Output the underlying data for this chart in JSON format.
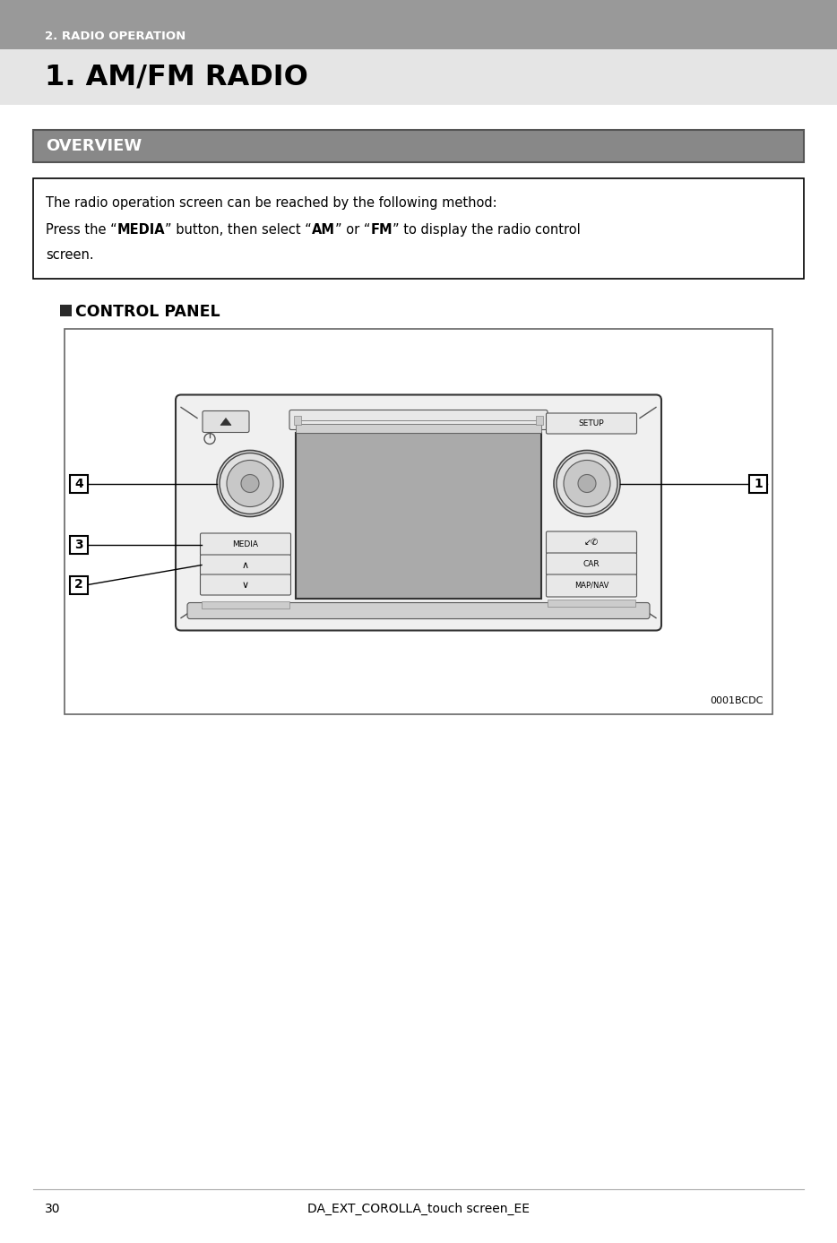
{
  "page_bg": "#efefef",
  "header_bg": "#999999",
  "header_text": "2. RADIO OPERATION",
  "header_text_color": "#ffffff",
  "title_bg": "#e5e5e5",
  "title_text": "1. AM/FM RADIO",
  "title_text_color": "#000000",
  "overview_bg": "#888888",
  "overview_text": "OVERVIEW",
  "overview_text_color": "#ffffff",
  "info_line1": "The radio operation screen can be reached by the following method:",
  "info_line2_plain1": "Press the “",
  "info_line2_bold1": "MEDIA",
  "info_line2_plain2": "” button, then select “",
  "info_line2_bold2": "AM",
  "info_line2_plain3": "” or “",
  "info_line2_bold3": "FM",
  "info_line2_plain4": "” to display the radio control",
  "info_line3": "screen.",
  "control_panel_label": "CONTROL PANEL",
  "image_code": "0001BCDC",
  "footer_text": "DA_EXT_COROLLA_touch screen_EE",
  "page_number": "30"
}
